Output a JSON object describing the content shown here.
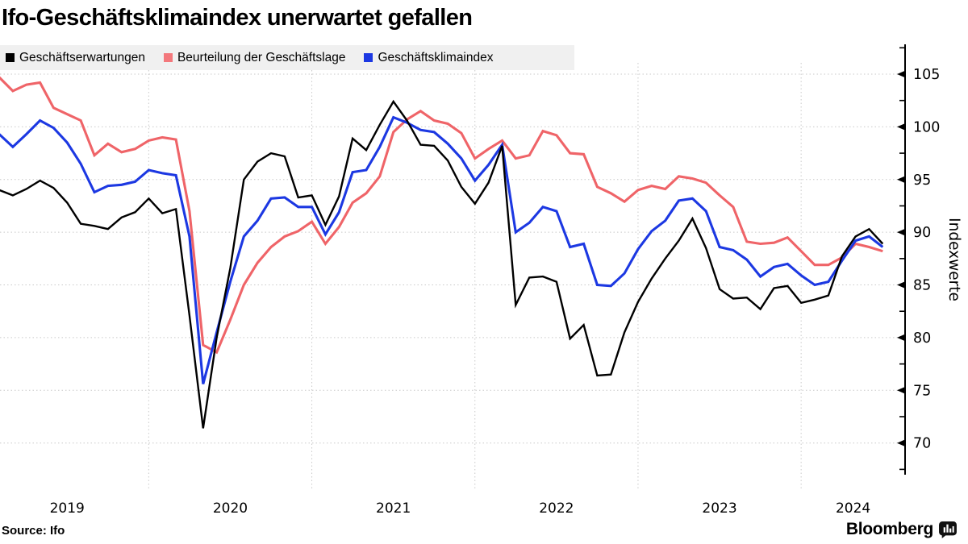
{
  "header": {
    "title": "Ifo-Geschäftsklimaindex unerwartet gefallen"
  },
  "legend": {
    "items": [
      {
        "label": "Geschäftserwartungen",
        "color": "#000000"
      },
      {
        "label": "Beurteilung der Geschäftslage",
        "color": "#f3787c"
      },
      {
        "label": "Geschäftsklimaindex",
        "color": "#1c38e2"
      }
    ]
  },
  "y_axis": {
    "label": "Indexwerte",
    "ticks": [
      105,
      100,
      95,
      90,
      85,
      80,
      75,
      70
    ],
    "minor_step": 2.5,
    "range": [
      67.5,
      107.5
    ]
  },
  "x_axis": {
    "years": [
      "2019",
      "2020",
      "2021",
      "2022",
      "2023",
      "2024"
    ]
  },
  "footer": {
    "source": "Source: Ifo",
    "brand": "Bloomberg",
    "brand_icon": "bloomberg-bars-icon"
  },
  "colors": {
    "expectations": "#000000",
    "situation": "#ef6468",
    "climate": "#1c38e2",
    "grid": "#c9c9c9",
    "legend_bg": "#f0f0f0"
  },
  "chart_data": {
    "type": "line",
    "title": "Ifo-Geschäftsklimaindex unerwartet gefallen",
    "xlabel": "",
    "ylabel": "Indexwerte",
    "ylim": [
      67.5,
      107.5
    ],
    "grid": true,
    "legend_position": "top-left",
    "x_start": "2019-01",
    "x_end": "2024-06",
    "frequency": "monthly",
    "categories": [
      "2019-01",
      "2019-02",
      "2019-03",
      "2019-04",
      "2019-05",
      "2019-06",
      "2019-07",
      "2019-08",
      "2019-09",
      "2019-10",
      "2019-11",
      "2019-12",
      "2020-01",
      "2020-02",
      "2020-03",
      "2020-04",
      "2020-05",
      "2020-06",
      "2020-07",
      "2020-08",
      "2020-09",
      "2020-10",
      "2020-11",
      "2020-12",
      "2021-01",
      "2021-02",
      "2021-03",
      "2021-04",
      "2021-05",
      "2021-06",
      "2021-07",
      "2021-08",
      "2021-09",
      "2021-10",
      "2021-11",
      "2021-12",
      "2022-01",
      "2022-02",
      "2022-03",
      "2022-04",
      "2022-05",
      "2022-06",
      "2022-07",
      "2022-08",
      "2022-09",
      "2022-10",
      "2022-11",
      "2022-12",
      "2023-01",
      "2023-02",
      "2023-03",
      "2023-04",
      "2023-05",
      "2023-06",
      "2023-07",
      "2023-08",
      "2023-09",
      "2023-10",
      "2023-11",
      "2023-12",
      "2024-01",
      "2024-02",
      "2024-03",
      "2024-04",
      "2024-05",
      "2024-06"
    ],
    "series": [
      {
        "name": "Geschäftserwartungen",
        "color": "#000000",
        "width": 2.4,
        "values": [
          94.0,
          93.5,
          94.1,
          94.9,
          94.2,
          92.8,
          90.8,
          90.6,
          90.3,
          91.4,
          91.9,
          93.2,
          91.8,
          92.2,
          82.1,
          71.4,
          80.0,
          86.6,
          95.0,
          96.7,
          97.5,
          97.2,
          93.3,
          93.5,
          90.7,
          93.4,
          98.9,
          97.8,
          100.2,
          102.4,
          100.6,
          98.3,
          98.2,
          96.8,
          94.3,
          92.7,
          94.7,
          98.2,
          83.1,
          85.7,
          85.8,
          85.3,
          79.9,
          81.2,
          76.4,
          76.5,
          80.5,
          83.4,
          85.6,
          87.5,
          89.2,
          91.3,
          88.5,
          84.6,
          83.7,
          83.8,
          82.7,
          84.7,
          84.9,
          83.3,
          83.6,
          84.0,
          87.7,
          89.6,
          90.3,
          88.9
        ]
      },
      {
        "name": "Beurteilung der Geschäftslage",
        "color": "#ef6468",
        "width": 3.1,
        "values": [
          104.7,
          103.4,
          104.0,
          104.2,
          101.8,
          101.2,
          100.6,
          97.3,
          98.4,
          97.6,
          97.9,
          98.7,
          99.0,
          98.8,
          92.0,
          79.3,
          78.6,
          81.7,
          85.0,
          87.1,
          88.6,
          89.6,
          90.1,
          91.0,
          88.9,
          90.5,
          92.8,
          93.7,
          95.3,
          99.5,
          100.7,
          101.5,
          100.6,
          100.3,
          99.4,
          97.0,
          97.9,
          98.7,
          97.0,
          97.3,
          99.6,
          99.2,
          97.5,
          97.4,
          94.3,
          93.7,
          92.9,
          94.0,
          94.4,
          94.1,
          95.3,
          95.1,
          94.7,
          93.5,
          92.4,
          89.1,
          88.9,
          89.0,
          89.5,
          88.2,
          86.9,
          86.9,
          87.6,
          88.9,
          88.6,
          88.2
        ]
      },
      {
        "name": "Geschäftsklimaindex",
        "color": "#1c38e2",
        "width": 3.1,
        "values": [
          99.3,
          98.1,
          99.3,
          100.6,
          99.9,
          98.5,
          96.5,
          93.8,
          94.4,
          94.5,
          94.8,
          95.9,
          95.6,
          95.4,
          89.6,
          75.6,
          80.5,
          85.3,
          89.6,
          91.1,
          93.2,
          93.3,
          92.4,
          92.4,
          89.8,
          91.9,
          95.7,
          95.9,
          98.1,
          100.9,
          100.4,
          99.7,
          99.5,
          98.4,
          97.0,
          94.9,
          96.4,
          98.3,
          90.0,
          90.9,
          92.4,
          92.0,
          88.6,
          88.9,
          85.0,
          84.9,
          86.1,
          88.4,
          90.1,
          91.1,
          93.0,
          93.2,
          92.0,
          88.6,
          88.3,
          87.4,
          85.8,
          86.7,
          87.0,
          85.9,
          85.0,
          85.3,
          87.3,
          89.2,
          89.6,
          88.6
        ]
      }
    ]
  }
}
